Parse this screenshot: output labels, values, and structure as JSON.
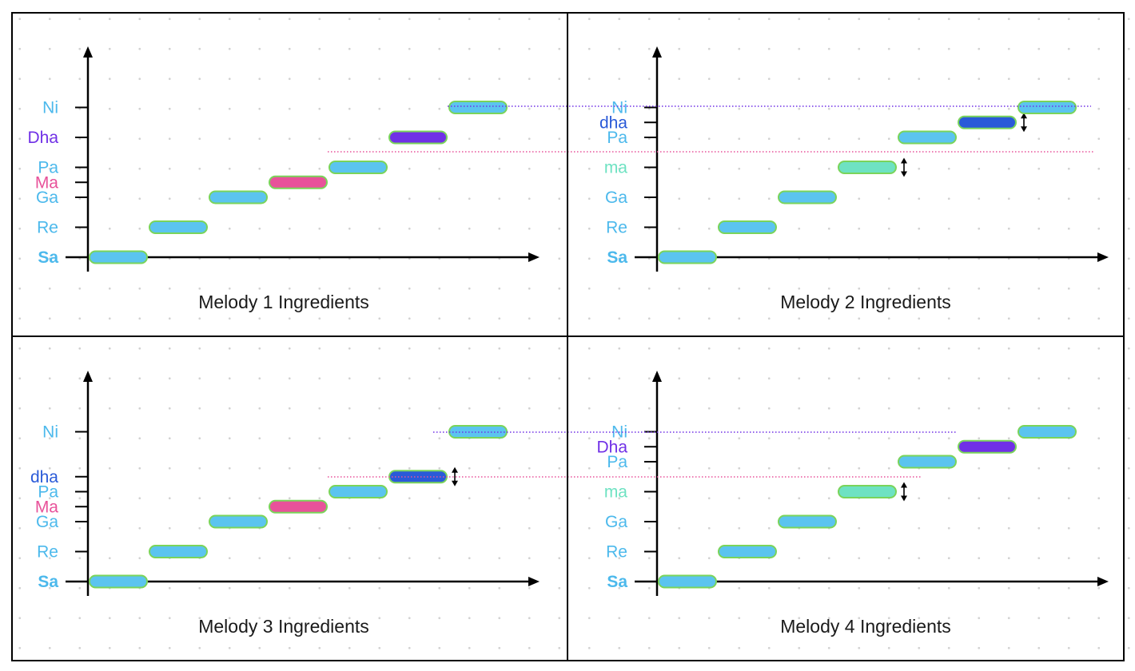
{
  "colors": {
    "blue": "#5bc4ef",
    "pink": "#e8529a",
    "purple": "#7030e6",
    "deep_blue": "#2a5ad8",
    "mint": "#6ee2c2",
    "bar_border": "#7ad45a",
    "label_blue": "#4cb9ec",
    "axis": "#000000"
  },
  "chart_data": [
    {
      "type": "diagram",
      "title": "Melody 1 Ingredients",
      "notes": [
        {
          "label": "Sa",
          "value": 0,
          "color": "blue",
          "bold": true
        },
        {
          "label": "Re",
          "value": 1,
          "color": "blue"
        },
        {
          "label": "Ga",
          "value": 2,
          "color": "blue"
        },
        {
          "label": "Ma",
          "value": 2.5,
          "color": "pink"
        },
        {
          "label": "Pa",
          "value": 3,
          "color": "blue"
        },
        {
          "label": "Dha",
          "value": 4,
          "color": "purple"
        },
        {
          "label": "Ni",
          "value": 5,
          "color": "blue"
        }
      ]
    },
    {
      "type": "diagram",
      "title": "Melody 2 Ingredients",
      "notes": [
        {
          "label": "Sa",
          "value": 0,
          "color": "blue",
          "bold": true
        },
        {
          "label": "Re",
          "value": 1,
          "color": "blue"
        },
        {
          "label": "Ga",
          "value": 2,
          "color": "blue"
        },
        {
          "label": "ma",
          "value": 3,
          "color": "mint",
          "arrow": true
        },
        {
          "label": "Pa",
          "value": 4,
          "color": "blue"
        },
        {
          "label": "dha",
          "value": 4.5,
          "color": "deep_blue",
          "arrow": true
        },
        {
          "label": "Ni",
          "value": 5,
          "color": "blue"
        }
      ]
    },
    {
      "type": "diagram",
      "title": "Melody 3 Ingredients",
      "notes": [
        {
          "label": "Sa",
          "value": 0,
          "color": "blue",
          "bold": true
        },
        {
          "label": "Re",
          "value": 1,
          "color": "blue"
        },
        {
          "label": "Ga",
          "value": 2,
          "color": "blue"
        },
        {
          "label": "Ma",
          "value": 2.5,
          "color": "pink"
        },
        {
          "label": "Pa",
          "value": 3,
          "color": "blue"
        },
        {
          "label": "dha",
          "value": 3.5,
          "color": "deep_blue",
          "arrow": true
        },
        {
          "label": "Ni",
          "value": 5,
          "color": "blue"
        }
      ]
    },
    {
      "type": "diagram",
      "title": "Melody 4 Ingredients",
      "notes": [
        {
          "label": "Sa",
          "value": 0,
          "color": "blue",
          "bold": true
        },
        {
          "label": "Re",
          "value": 1,
          "color": "blue"
        },
        {
          "label": "Ga",
          "value": 2,
          "color": "blue"
        },
        {
          "label": "ma",
          "value": 3,
          "color": "mint",
          "arrow": true
        },
        {
          "label": "Pa",
          "value": 4,
          "color": "blue"
        },
        {
          "label": "Dha",
          "value": 4.5,
          "color": "purple"
        },
        {
          "label": "Ni",
          "value": 5,
          "color": "blue"
        }
      ]
    }
  ]
}
